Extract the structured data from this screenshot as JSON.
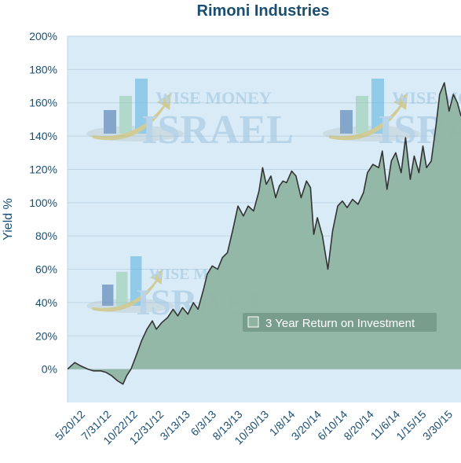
{
  "chart_data": {
    "type": "area",
    "title": "Rimoni Industries",
    "xlabel": "",
    "ylabel": "Yield %",
    "ylim": [
      -20,
      200
    ],
    "y_ticks": [
      "200%",
      "180%",
      "160%",
      "140%",
      "120%",
      "100%",
      "80%",
      "60%",
      "40%",
      "20%",
      "0%"
    ],
    "y_tick_values": [
      200,
      180,
      160,
      140,
      120,
      100,
      80,
      60,
      40,
      20,
      0
    ],
    "x_ticks": [
      "5/20/12",
      "7/31/12",
      "10/22/12",
      "12/31/12",
      "3/13/13",
      "6/3/13",
      "8/13/13",
      "10/30/13",
      "1/8/14",
      "3/20/14",
      "6/10/14",
      "8/20/14",
      "11/6/14",
      "1/15/15",
      "3/30/15"
    ],
    "x_range": [
      "4/30/12",
      "4/20/15"
    ],
    "grid": true,
    "legend_position": "center-right",
    "series": [
      {
        "name": "3 Year Return on Investment",
        "color": "#8fb5a2",
        "x": [
          "4/30/12",
          "5/20/12",
          "6/5/12",
          "6/25/12",
          "7/10/12",
          "7/31/12",
          "8/15/12",
          "8/30/12",
          "9/15/12",
          "9/30/12",
          "10/10/12",
          "10/22/12",
          "11/5/12",
          "11/20/12",
          "12/5/12",
          "12/20/12",
          "12/31/12",
          "1/15/13",
          "1/31/13",
          "2/15/13",
          "2/28/13",
          "3/13/13",
          "3/28/13",
          "4/12/13",
          "4/25/13",
          "5/10/13",
          "5/20/13",
          "6/3/13",
          "6/18/13",
          "7/1/13",
          "7/15/13",
          "7/30/13",
          "8/13/13",
          "8/28/13",
          "9/10/13",
          "9/25/13",
          "10/10/13",
          "10/20/13",
          "10/30/13",
          "11/12/13",
          "11/25/13",
          "12/5/13",
          "12/15/13",
          "12/25/13",
          "1/8/14",
          "1/20/14",
          "2/3/14",
          "2/18/14",
          "3/1/14",
          "3/10/14",
          "3/20/14",
          "4/3/14",
          "4/18/14",
          "5/1/14",
          "5/15/14",
          "5/28/14",
          "6/10/14",
          "6/25/14",
          "7/10/14",
          "7/25/14",
          "8/5/14",
          "8/20/14",
          "9/5/14",
          "9/15/14",
          "9/28/14",
          "10/10/14",
          "10/22/14",
          "11/6/14",
          "11/18/14",
          "12/1/14",
          "12/12/14",
          "12/25/14",
          "1/5/15",
          "1/15/15",
          "1/28/15",
          "2/10/15",
          "2/20/15",
          "3/5/15",
          "3/18/15",
          "3/30/15",
          "4/10/15",
          "4/20/15"
        ],
        "values": [
          0,
          4,
          2,
          0,
          -1,
          -1,
          -2,
          -4,
          -7,
          -9,
          -4,
          0,
          8,
          17,
          24,
          29,
          24,
          28,
          31,
          36,
          32,
          37,
          33,
          40,
          36,
          48,
          57,
          62,
          60,
          67,
          70,
          84,
          98,
          92,
          98,
          95,
          107,
          121,
          111,
          116,
          103,
          110,
          113,
          112,
          119,
          116,
          103,
          113,
          109,
          81,
          91,
          80,
          60,
          83,
          98,
          101,
          97,
          102,
          99,
          106,
          118,
          123,
          121,
          131,
          108,
          125,
          130,
          118,
          139,
          114,
          128,
          118,
          134,
          121,
          125,
          146,
          165,
          172,
          155,
          165,
          160,
          152
        ]
      }
    ]
  },
  "watermark": {
    "line1": "WISE MONEY",
    "line2": "ISRAEL",
    "colors": {
      "bar1": "#3f6fa8",
      "bar2": "#8fc9a8",
      "bar3": "#59b1e0",
      "arrow": "#c9b24b",
      "text": "#9cc3de"
    }
  },
  "colors": {
    "plot_bg": "#d9ebf6",
    "area_fill": "#8fb5a2",
    "line": "#333333",
    "grid": "#bfd6e6",
    "title": "#1b4f72",
    "axis_text": "#1b4f72",
    "legend_bg": "#6f9483"
  }
}
